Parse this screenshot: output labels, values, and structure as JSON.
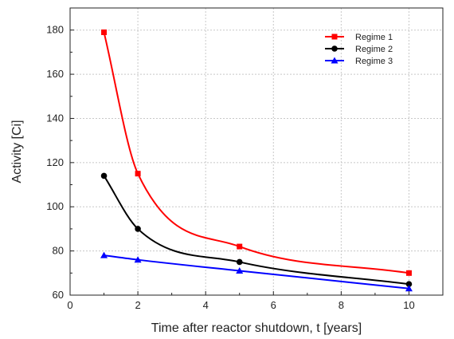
{
  "chart_data": {
    "type": "line",
    "title": "",
    "xlabel": "Time after reactor shutdown, t [years]",
    "ylabel": "Activity [Ci]",
    "xlim": [
      0,
      11
    ],
    "ylim": [
      60,
      190
    ],
    "xticks": [
      0,
      2,
      4,
      6,
      8,
      10
    ],
    "yticks": [
      60,
      80,
      100,
      120,
      140,
      160,
      180
    ],
    "grid": true,
    "legend_position": "top-right",
    "x": [
      1,
      2,
      5,
      10
    ],
    "series": [
      {
        "name": "Regime 1",
        "values": [
          179,
          115,
          82,
          70
        ],
        "color": "#ff0000",
        "marker": "square"
      },
      {
        "name": "Regime 2",
        "values": [
          114,
          90,
          75,
          65
        ],
        "color": "#000000",
        "marker": "circle"
      },
      {
        "name": "Regime 3",
        "values": [
          78,
          76,
          71,
          63
        ],
        "color": "#0000ff",
        "marker": "triangle"
      }
    ]
  }
}
